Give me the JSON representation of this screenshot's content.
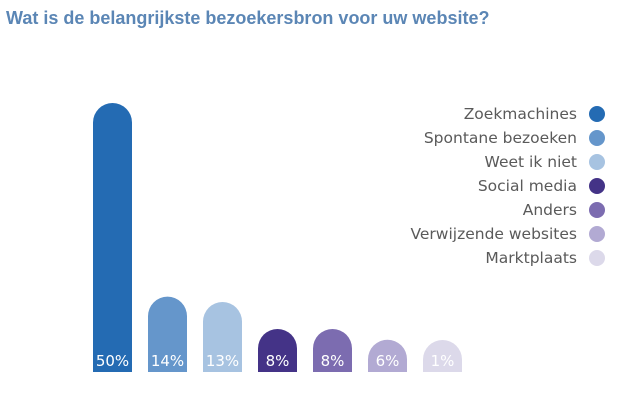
{
  "title": "Wat is de belangrijkste bezoekersbron voor uw website?",
  "chart_data": {
    "type": "bar",
    "title": "Wat is de belangrijkste bezoekersbron voor uw website?",
    "categories": [
      "Zoekmachines",
      "Spontane bezoeken",
      "Weet ik niet",
      "Social media",
      "Anders",
      "Verwijzende websites",
      "Marktplaats"
    ],
    "values": [
      50,
      14,
      13,
      8,
      8,
      6,
      1
    ],
    "value_labels": [
      "50%",
      "14%",
      "13%",
      "8%",
      "8%",
      "6%",
      "1%"
    ],
    "colors": [
      "#246bb3",
      "#6596cb",
      "#a7c3e1",
      "#443387",
      "#7c6cb0",
      "#b2aad3",
      "#dcd9ea"
    ],
    "xlabel": "",
    "ylabel": "",
    "grid": false,
    "legend_position": "right"
  }
}
